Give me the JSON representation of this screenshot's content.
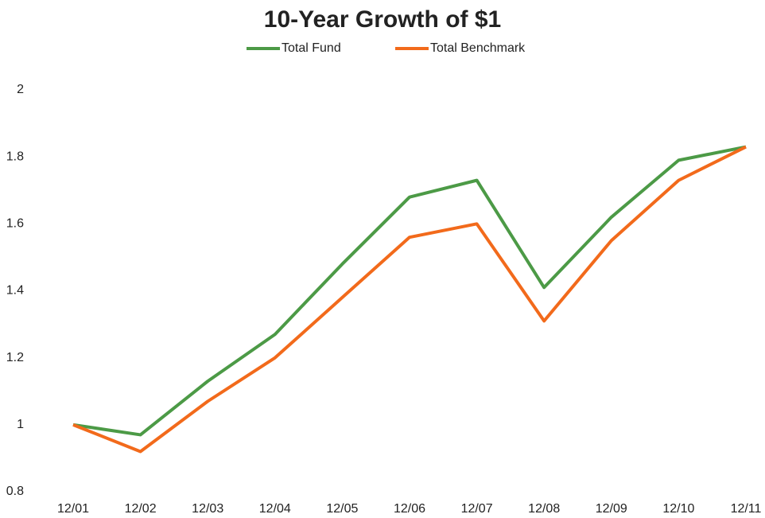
{
  "chart_data": {
    "type": "line",
    "title": "10-Year Growth of $1",
    "categories": [
      "12/01",
      "12/02",
      "12/03",
      "12/04",
      "12/05",
      "12/06",
      "12/07",
      "12/08",
      "12/09",
      "12/10",
      "12/11"
    ],
    "series": [
      {
        "name": "Total Fund",
        "color": "#4c9a46",
        "values": [
          1.0,
          0.97,
          1.13,
          1.27,
          1.48,
          1.68,
          1.73,
          1.41,
          1.62,
          1.79,
          1.83
        ]
      },
      {
        "name": "Total Benchmark",
        "color": "#f26a1b",
        "values": [
          1.0,
          0.92,
          1.07,
          1.2,
          1.38,
          1.56,
          1.6,
          1.31,
          1.55,
          1.73,
          1.83
        ]
      }
    ],
    "ylim": [
      0.8,
      2
    ],
    "yticks": [
      0.8,
      1,
      1.2,
      1.4,
      1.6,
      1.8,
      2
    ],
    "grid": false,
    "legend": "top"
  }
}
